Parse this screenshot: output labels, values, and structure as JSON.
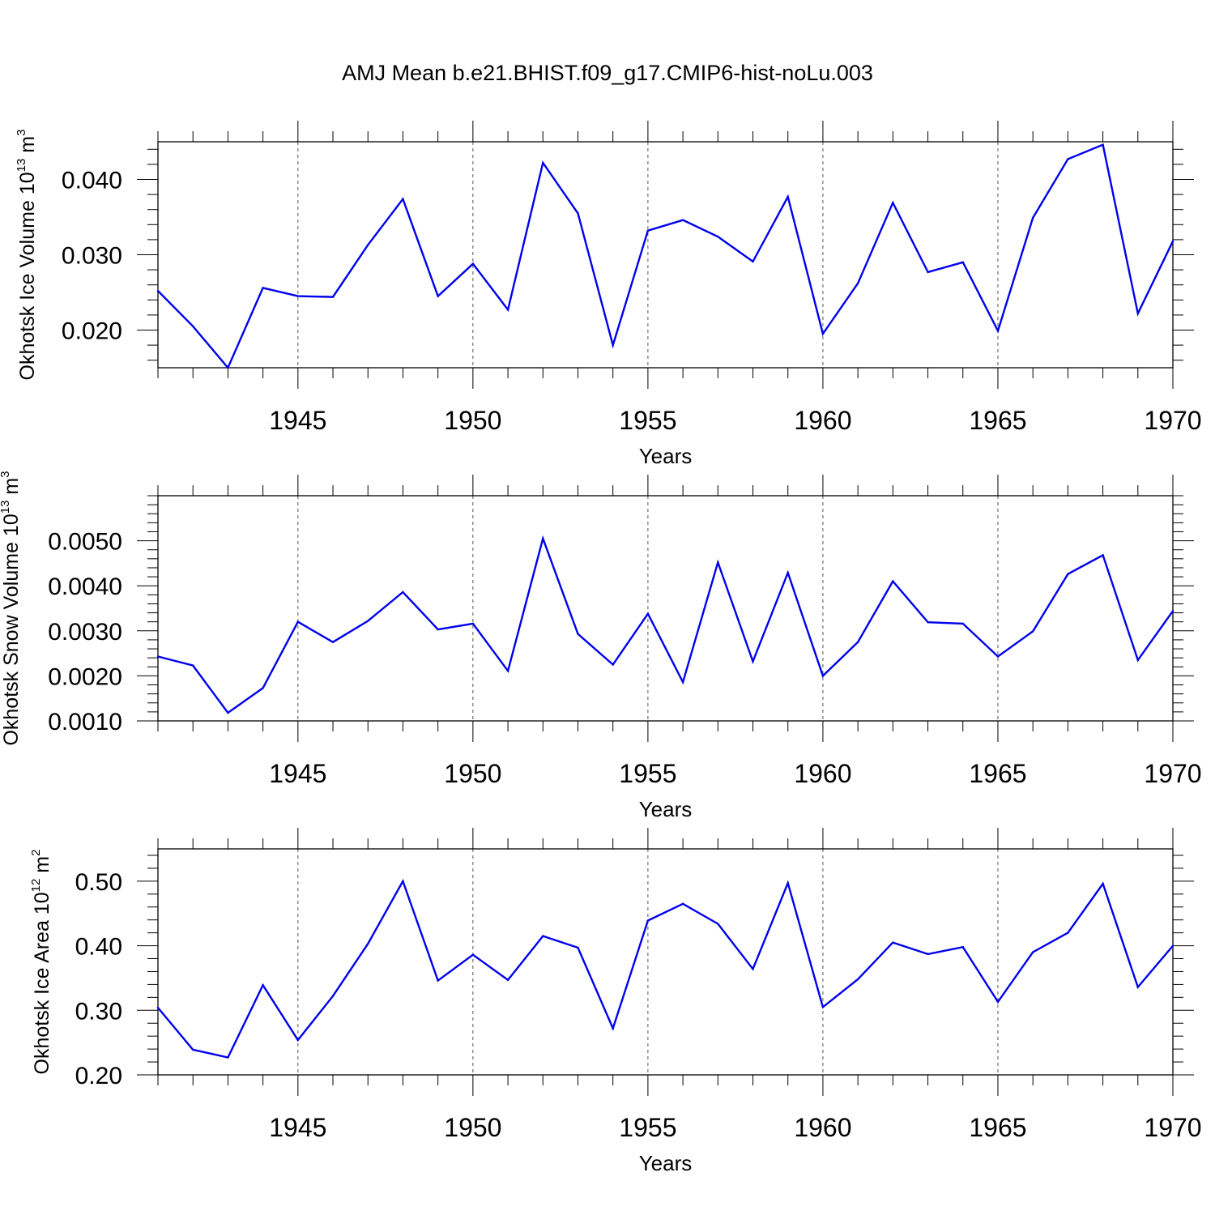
{
  "chart_data": {
    "type": "line",
    "title": "AMJ Mean b.e21.BHIST.f09_g17.CMIP6-hist-noLu.003",
    "line_color": "#0000ee",
    "x": [
      1941,
      1942,
      1943,
      1944,
      1945,
      1946,
      1947,
      1948,
      1949,
      1950,
      1951,
      1952,
      1953,
      1954,
      1955,
      1956,
      1957,
      1958,
      1959,
      1960,
      1961,
      1962,
      1963,
      1964,
      1965,
      1966,
      1967,
      1968,
      1969,
      1970
    ],
    "xlim": [
      1941,
      1970
    ],
    "x_tick_values": [
      1945,
      1950,
      1955,
      1960,
      1965,
      1970
    ],
    "x_tick_labels": [
      "1945",
      "1950",
      "1955",
      "1960",
      "1965",
      "1970"
    ],
    "panels": [
      {
        "ylabel": "Okhotsk Ice Volume 10",
        "ylabel_exponent": "13",
        "ylabel_unit": "m",
        "ylabel_unit_exponent": "3",
        "xlabel": "Years",
        "ylim": [
          0.015,
          0.045
        ],
        "y_tick_values": [
          0.02,
          0.03,
          0.04
        ],
        "y_tick_labels": [
          "0.020",
          "0.030",
          "0.040"
        ],
        "y_minor_step": 0.002,
        "values": [
          0.0252,
          0.0205,
          0.015,
          0.0256,
          0.0245,
          0.0244,
          0.0313,
          0.0374,
          0.0245,
          0.0288,
          0.0227,
          0.0422,
          0.0355,
          0.018,
          0.0332,
          0.0346,
          0.0324,
          0.0291,
          0.0377,
          0.0195,
          0.0262,
          0.0369,
          0.0277,
          0.029,
          0.0199,
          0.0349,
          0.0427,
          0.0446,
          0.0222,
          0.0318
        ]
      },
      {
        "ylabel": "Okhotsk Snow Volume 10",
        "ylabel_exponent": "13",
        "ylabel_unit": "m",
        "ylabel_unit_exponent": "3",
        "xlabel": "Years",
        "ylim": [
          0.001,
          0.006
        ],
        "y_tick_values": [
          0.001,
          0.002,
          0.003,
          0.004,
          0.005
        ],
        "y_tick_labels": [
          "0.0010",
          "0.0020",
          "0.0030",
          "0.0040",
          "0.0050"
        ],
        "y_minor_step": 0.0002,
        "values": [
          0.00243,
          0.00223,
          0.00118,
          0.00173,
          0.0032,
          0.00275,
          0.00322,
          0.00386,
          0.00303,
          0.00316,
          0.00211,
          0.00505,
          0.00293,
          0.00225,
          0.00338,
          0.00186,
          0.00452,
          0.00232,
          0.00429,
          0.002,
          0.00275,
          0.0041,
          0.00319,
          0.00316,
          0.00243,
          0.00299,
          0.00426,
          0.00468,
          0.00235,
          0.00344
        ]
      },
      {
        "ylabel": "Okhotsk Ice Area 10",
        "ylabel_exponent": "12",
        "ylabel_unit": "m",
        "ylabel_unit_exponent": "2",
        "xlabel": "Years",
        "ylim": [
          0.2,
          0.55
        ],
        "y_tick_values": [
          0.2,
          0.3,
          0.4,
          0.5
        ],
        "y_tick_labels": [
          "0.20",
          "0.30",
          "0.40",
          "0.50"
        ],
        "y_minor_step": 0.02,
        "values": [
          0.304,
          0.239,
          0.227,
          0.339,
          0.254,
          0.322,
          0.403,
          0.5,
          0.346,
          0.386,
          0.347,
          0.415,
          0.397,
          0.272,
          0.439,
          0.465,
          0.434,
          0.364,
          0.497,
          0.305,
          0.348,
          0.405,
          0.387,
          0.398,
          0.313,
          0.39,
          0.42,
          0.496,
          0.336,
          0.4
        ]
      }
    ]
  }
}
